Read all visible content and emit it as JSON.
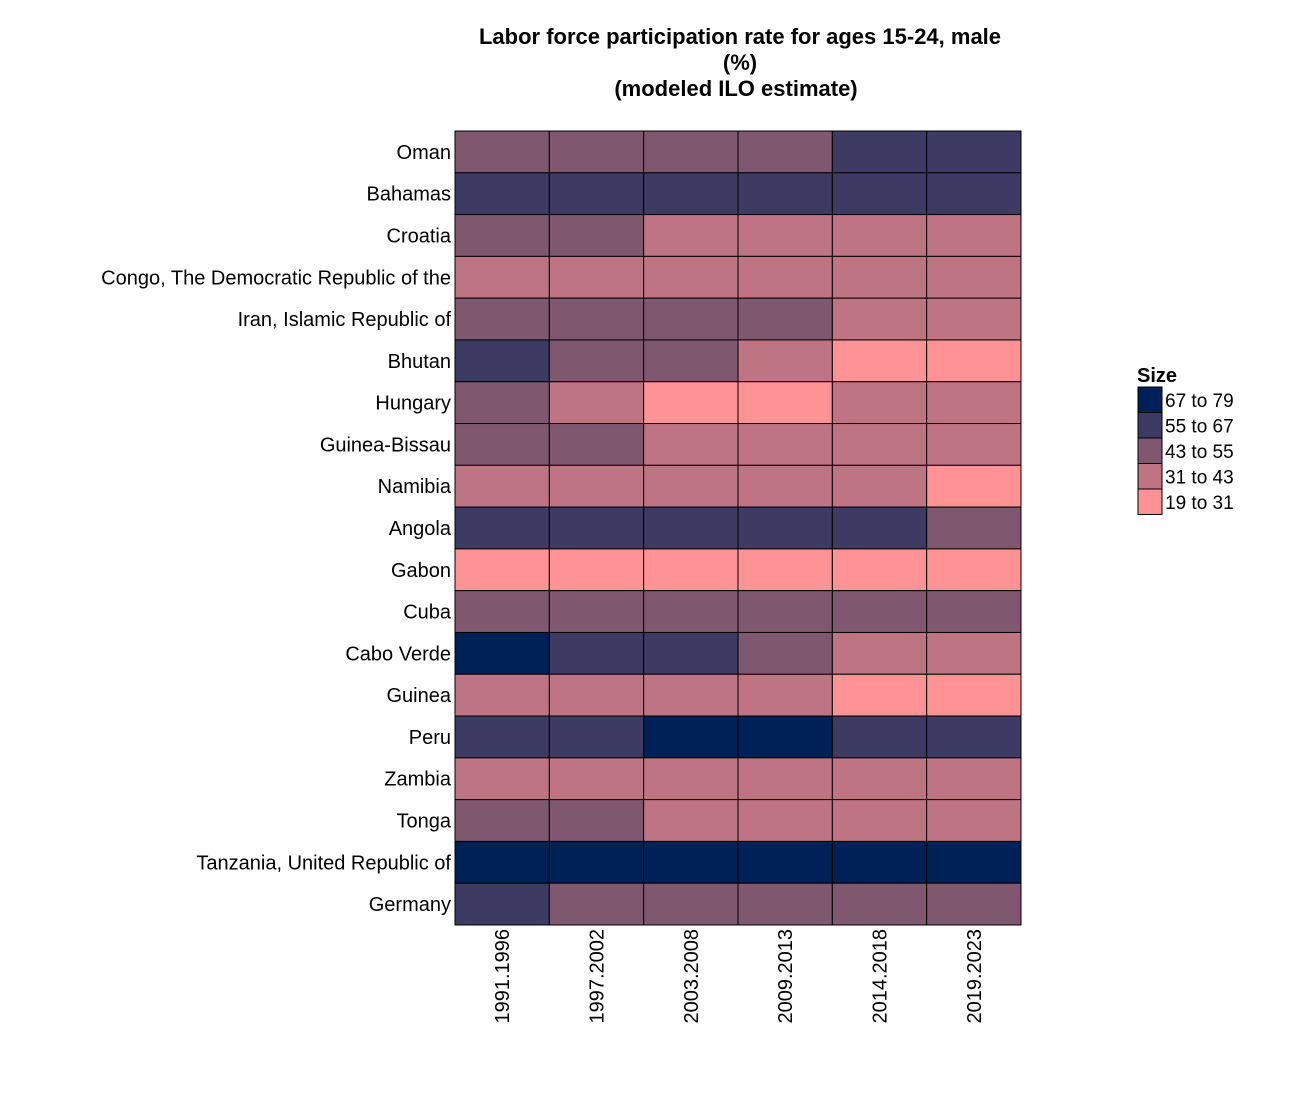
{
  "chart_data": {
    "type": "heatmap",
    "title": [
      "Labor force participation rate for ages 15-24, male",
      "(%)",
      "(modeled ILO estimate)"
    ],
    "x_categories": [
      "1991.1996",
      "1997.2002",
      "2003.2008",
      "2009.2013",
      "2014.2018",
      "2019.2023"
    ],
    "y_categories": [
      "Oman",
      "Bahamas",
      "Croatia",
      "Congo, The Democratic Republic of the",
      "Iran, Islamic Republic of",
      "Bhutan",
      "Hungary",
      "Guinea-Bissau",
      "Namibia",
      "Angola",
      "Gabon",
      "Cuba",
      "Cabo Verde",
      "Guinea",
      "Peru",
      "Zambia",
      "Tonga",
      "Tanzania, United Republic of",
      "Germany"
    ],
    "legend": {
      "title": "Size",
      "bins": [
        {
          "label": "67 to 79",
          "color": "#002157"
        },
        {
          "label": "55 to 67",
          "color": "#3d3b63"
        },
        {
          "label": "43 to 55",
          "color": "#7f5870"
        },
        {
          "label": "31 to 43",
          "color": "#bf7483"
        },
        {
          "label": "19 to 31",
          "color": "#ff9294"
        }
      ]
    },
    "cells": [
      [
        "43 to 55",
        "43 to 55",
        "43 to 55",
        "43 to 55",
        "55 to 67",
        "55 to 67"
      ],
      [
        "55 to 67",
        "55 to 67",
        "55 to 67",
        "55 to 67",
        "55 to 67",
        "55 to 67"
      ],
      [
        "43 to 55",
        "43 to 55",
        "31 to 43",
        "31 to 43",
        "31 to 43",
        "31 to 43"
      ],
      [
        "31 to 43",
        "31 to 43",
        "31 to 43",
        "31 to 43",
        "31 to 43",
        "31 to 43"
      ],
      [
        "43 to 55",
        "43 to 55",
        "43 to 55",
        "43 to 55",
        "31 to 43",
        "31 to 43"
      ],
      [
        "55 to 67",
        "43 to 55",
        "43 to 55",
        "31 to 43",
        "19 to 31",
        "19 to 31"
      ],
      [
        "43 to 55",
        "31 to 43",
        "19 to 31",
        "19 to 31",
        "31 to 43",
        "31 to 43"
      ],
      [
        "43 to 55",
        "43 to 55",
        "31 to 43",
        "31 to 43",
        "31 to 43",
        "31 to 43"
      ],
      [
        "31 to 43",
        "31 to 43",
        "31 to 43",
        "31 to 43",
        "31 to 43",
        "19 to 31"
      ],
      [
        "55 to 67",
        "55 to 67",
        "55 to 67",
        "55 to 67",
        "55 to 67",
        "43 to 55"
      ],
      [
        "19 to 31",
        "19 to 31",
        "19 to 31",
        "19 to 31",
        "19 to 31",
        "19 to 31"
      ],
      [
        "43 to 55",
        "43 to 55",
        "43 to 55",
        "43 to 55",
        "43 to 55",
        "43 to 55"
      ],
      [
        "67 to 79",
        "55 to 67",
        "55 to 67",
        "43 to 55",
        "31 to 43",
        "31 to 43"
      ],
      [
        "31 to 43",
        "31 to 43",
        "31 to 43",
        "31 to 43",
        "19 to 31",
        "19 to 31"
      ],
      [
        "55 to 67",
        "55 to 67",
        "67 to 79",
        "67 to 79",
        "55 to 67",
        "55 to 67"
      ],
      [
        "31 to 43",
        "31 to 43",
        "31 to 43",
        "31 to 43",
        "31 to 43",
        "31 to 43"
      ],
      [
        "43 to 55",
        "43 to 55",
        "31 to 43",
        "31 to 43",
        "31 to 43",
        "31 to 43"
      ],
      [
        "67 to 79",
        "67 to 79",
        "67 to 79",
        "67 to 79",
        "67 to 79",
        "67 to 79"
      ],
      [
        "55 to 67",
        "43 to 55",
        "43 to 55",
        "43 to 55",
        "43 to 55",
        "43 to 55"
      ]
    ]
  }
}
